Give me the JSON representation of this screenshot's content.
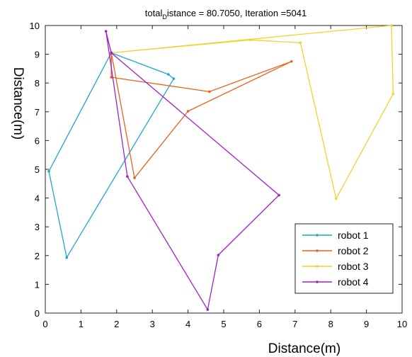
{
  "chart_data": {
    "type": "line",
    "title": {
      "prefix": "total",
      "subscript": "D",
      "suffix": "istance = 80.7050, Iteration =5041"
    },
    "xlabel": "Distance(m)",
    "ylabel": "Distance(m)",
    "xlim": [
      0,
      10
    ],
    "ylim": [
      0,
      10
    ],
    "xticks": [
      0,
      1,
      2,
      3,
      4,
      5,
      6,
      7,
      8,
      9,
      10
    ],
    "yticks": [
      0,
      1,
      2,
      3,
      4,
      5,
      6,
      7,
      8,
      9,
      10
    ],
    "grid": false,
    "legend_position": "bottom-right",
    "series": [
      {
        "name": "robot 1",
        "color": "#1fa6cf",
        "points": [
          [
            1.85,
            9.05
          ],
          [
            3.45,
            8.3
          ],
          [
            3.6,
            8.15
          ],
          [
            0.6,
            1.93
          ],
          [
            0.1,
            4.93
          ],
          [
            1.85,
            9.05
          ]
        ]
      },
      {
        "name": "robot 2",
        "color": "#e8621e",
        "points": [
          [
            1.85,
            9.05
          ],
          [
            1.85,
            8.2
          ],
          [
            4.6,
            7.7
          ],
          [
            6.9,
            8.75
          ],
          [
            4.0,
            7.02
          ],
          [
            2.5,
            4.7
          ],
          [
            1.85,
            9.05
          ]
        ]
      },
      {
        "name": "robot 3",
        "color": "#f2d230",
        "points": [
          [
            1.85,
            9.05
          ],
          [
            5.75,
            9.5
          ],
          [
            7.15,
            9.4
          ],
          [
            8.15,
            3.98
          ],
          [
            9.75,
            7.62
          ],
          [
            9.7,
            10.0
          ],
          [
            1.85,
            9.05
          ]
        ]
      },
      {
        "name": "robot 4",
        "color": "#a020c8",
        "points": [
          [
            1.85,
            9.05
          ],
          [
            1.7,
            9.8
          ],
          [
            2.3,
            4.75
          ],
          [
            4.55,
            0.12
          ],
          [
            4.85,
            2.02
          ],
          [
            6.55,
            4.1
          ],
          [
            1.85,
            9.05
          ]
        ]
      }
    ]
  }
}
